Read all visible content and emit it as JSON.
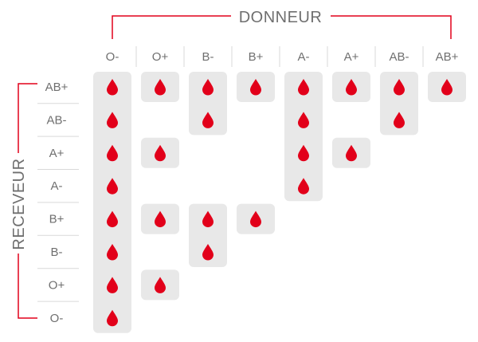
{
  "titles": {
    "donor": "DONNEUR",
    "recipient": "RECEVEUR"
  },
  "donors": [
    "O-",
    "O+",
    "B-",
    "B+",
    "A-",
    "A+",
    "AB-",
    "AB+"
  ],
  "recipients": [
    "AB+",
    "AB-",
    "A+",
    "A-",
    "B+",
    "B-",
    "O+",
    "O-"
  ],
  "icon": "blood-drop-icon",
  "colors": {
    "accent": "#e2001a",
    "cell_background": "#e8e8e8",
    "text": "#6f6f6f",
    "grid_lines": "#d9d9d9"
  },
  "chart_data": {
    "type": "table",
    "compatibility": {
      "AB+": [
        "O-",
        "O+",
        "B-",
        "B+",
        "A-",
        "A+",
        "AB-",
        "AB+"
      ],
      "AB-": [
        "O-",
        "B-",
        "A-",
        "AB-"
      ],
      "A+": [
        "O-",
        "O+",
        "A-",
        "A+"
      ],
      "A-": [
        "O-",
        "A-"
      ],
      "B+": [
        "O-",
        "O+",
        "B-",
        "B+"
      ],
      "B-": [
        "O-",
        "B-"
      ],
      "O+": [
        "O-",
        "O+"
      ],
      "O-": [
        "O-"
      ]
    }
  }
}
